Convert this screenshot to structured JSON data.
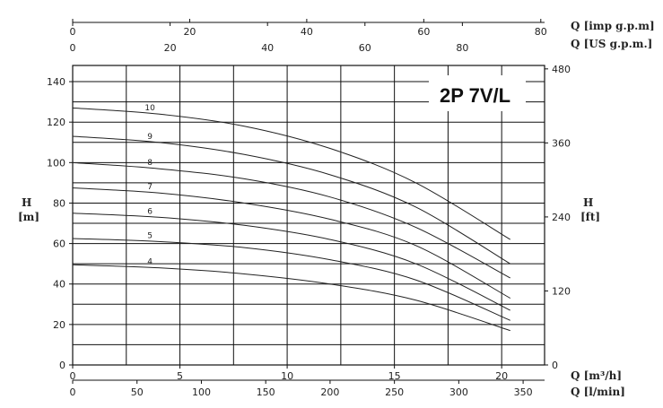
{
  "chart_data": {
    "type": "line",
    "title": "2P 7V/L",
    "x_axis": {
      "label": "Q [m³/h]",
      "ticks": [
        "0",
        "5",
        "10",
        "15",
        "20"
      ],
      "range": [
        0,
        22
      ]
    },
    "x_axis_lmin": {
      "label": "Q [l/min]",
      "ticks": [
        "0",
        "50",
        "100",
        "150",
        "200",
        "250",
        "300",
        "350"
      ]
    },
    "x_axis_us": {
      "label": "Q [US g.p.m.]",
      "ticks": [
        "0",
        "20",
        "40",
        "60",
        "80"
      ]
    },
    "x_axis_imp": {
      "label": "Q [imp g.p.m]",
      "ticks": [
        "0",
        "20",
        "40",
        "60",
        "80"
      ]
    },
    "y_axis": {
      "label_top": "H",
      "label_bottom": "[m]",
      "ticks": [
        "0",
        "20",
        "40",
        "60",
        "80",
        "100",
        "120",
        "140"
      ],
      "range": [
        0,
        148
      ]
    },
    "y_axis_ft": {
      "label_top": "H",
      "label_bottom": "[ft]",
      "ticks": [
        "0",
        "120",
        "240",
        "360",
        "480"
      ]
    },
    "grid": true,
    "series": [
      {
        "name": "10",
        "x": [
          0,
          4,
          8,
          12,
          16,
          20.4
        ],
        "y": [
          127,
          124,
          118,
          107,
          90,
          62
        ]
      },
      {
        "name": "9",
        "x": [
          0,
          4,
          8,
          12,
          16,
          20.4
        ],
        "y": [
          113,
          110,
          104,
          94,
          78,
          50
        ]
      },
      {
        "name": "8",
        "x": [
          0,
          4,
          8,
          12,
          16,
          20.4
        ],
        "y": [
          100,
          97,
          92,
          83,
          68,
          43
        ]
      },
      {
        "name": "7",
        "x": [
          0,
          4,
          8,
          12,
          16,
          20.4
        ],
        "y": [
          87.5,
          85,
          80,
          72,
          59,
          33
        ]
      },
      {
        "name": "6",
        "x": [
          0,
          4,
          8,
          12,
          16,
          20.4
        ],
        "y": [
          75,
          73,
          69,
          62,
          50,
          27
        ]
      },
      {
        "name": "5",
        "x": [
          0,
          4,
          8,
          12,
          16,
          20.4
        ],
        "y": [
          62.5,
          61,
          58,
          52,
          42,
          22
        ]
      },
      {
        "name": "4",
        "x": [
          0,
          4,
          8,
          12,
          16,
          20.4
        ],
        "y": [
          49.5,
          48,
          45,
          40,
          32,
          17
        ]
      }
    ]
  }
}
